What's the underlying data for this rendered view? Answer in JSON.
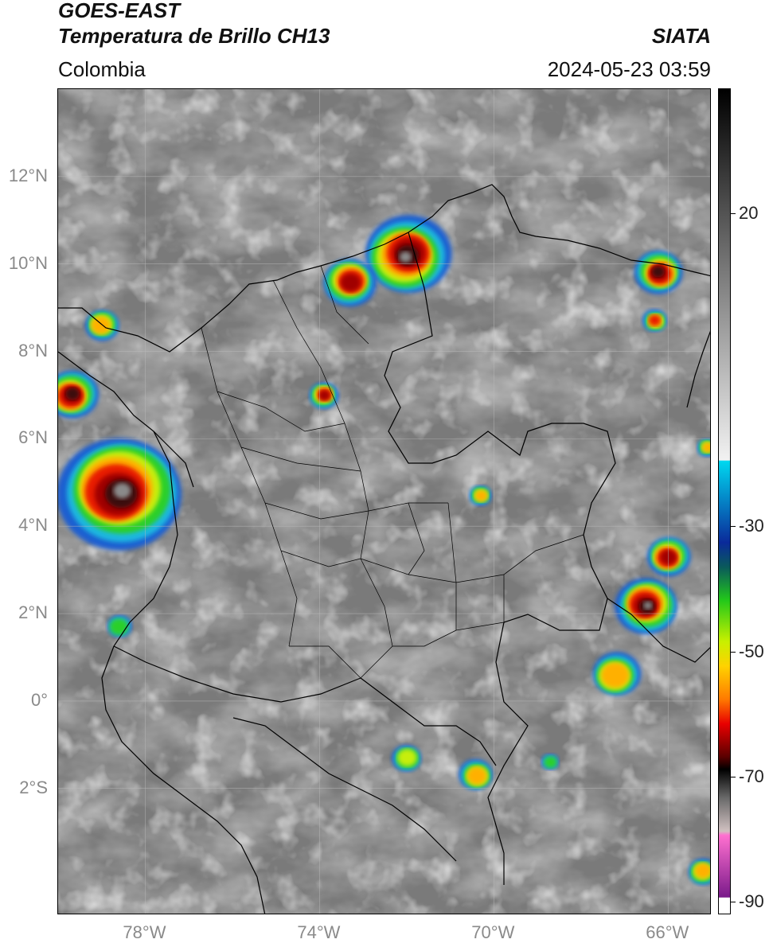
{
  "header": {
    "title_line1": "GOES-EAST",
    "title_line2": "Temperatura de Brillo CH13",
    "source": "SIATA",
    "region": "Colombia",
    "datetime": "2024-05-23 03:59"
  },
  "map": {
    "lat_ticks": [
      {
        "label": "12°N",
        "lat": 12
      },
      {
        "label": "10°N",
        "lat": 10
      },
      {
        "label": "8°N",
        "lat": 8
      },
      {
        "label": "6°N",
        "lat": 6
      },
      {
        "label": "4°N",
        "lat": 4
      },
      {
        "label": "2°N",
        "lat": 2
      },
      {
        "label": "0°",
        "lat": 0
      },
      {
        "label": "2°S",
        "lat": -2
      }
    ],
    "lon_ticks": [
      {
        "label": "78°W",
        "lon": -78
      },
      {
        "label": "74°W",
        "lon": -74
      },
      {
        "label": "70°W",
        "lon": -70
      },
      {
        "label": "66°W",
        "lon": -66
      }
    ],
    "lon_range": [
      -80,
      -65
    ],
    "lat_range": [
      -4.9,
      14
    ],
    "grid": true,
    "base_color": "#7a7a7a",
    "storms": [
      {
        "lon": -78.6,
        "lat": 4.8,
        "size": 2.6,
        "intensity": 1.0
      },
      {
        "lon": -79.7,
        "lat": 7.0,
        "size": 1.1,
        "intensity": 0.85
      },
      {
        "lon": -72.0,
        "lat": 10.2,
        "size": 1.8,
        "intensity": 1.0
      },
      {
        "lon": -73.3,
        "lat": 9.6,
        "size": 1.1,
        "intensity": 0.8
      },
      {
        "lon": -66.2,
        "lat": 9.8,
        "size": 1.0,
        "intensity": 0.85
      },
      {
        "lon": -66.3,
        "lat": 8.7,
        "size": 0.5,
        "intensity": 0.7
      },
      {
        "lon": -66.5,
        "lat": 2.2,
        "size": 1.3,
        "intensity": 1.0
      },
      {
        "lon": -66.0,
        "lat": 3.3,
        "size": 0.9,
        "intensity": 0.75
      },
      {
        "lon": -67.2,
        "lat": 0.6,
        "size": 1.0,
        "intensity": 0.6
      },
      {
        "lon": -73.9,
        "lat": 7.0,
        "size": 0.6,
        "intensity": 0.8
      },
      {
        "lon": -70.3,
        "lat": 4.7,
        "size": 0.45,
        "intensity": 0.6
      },
      {
        "lon": -70.4,
        "lat": -1.7,
        "size": 0.7,
        "intensity": 0.6
      },
      {
        "lon": -72.0,
        "lat": -1.3,
        "size": 0.6,
        "intensity": 0.4
      },
      {
        "lon": -79.0,
        "lat": 8.6,
        "size": 0.7,
        "intensity": 0.6
      },
      {
        "lon": -78.6,
        "lat": 1.7,
        "size": 0.5,
        "intensity": 0.35
      },
      {
        "lon": -65.2,
        "lat": -3.9,
        "size": 0.6,
        "intensity": 0.6
      },
      {
        "lon": -65.1,
        "lat": 5.8,
        "size": 0.4,
        "intensity": 0.5
      },
      {
        "lon": -68.7,
        "lat": -1.4,
        "size": 0.35,
        "intensity": 0.35
      }
    ],
    "border_color": "#000000"
  },
  "colorbar": {
    "ticks": [
      {
        "label": "20",
        "value": 20
      },
      {
        "label": "-30",
        "value": -30
      },
      {
        "label": "-50",
        "value": -50
      },
      {
        "label": "-70",
        "value": -70
      },
      {
        "label": "-90",
        "value": -90
      }
    ],
    "range": [
      -92,
      40
    ]
  }
}
